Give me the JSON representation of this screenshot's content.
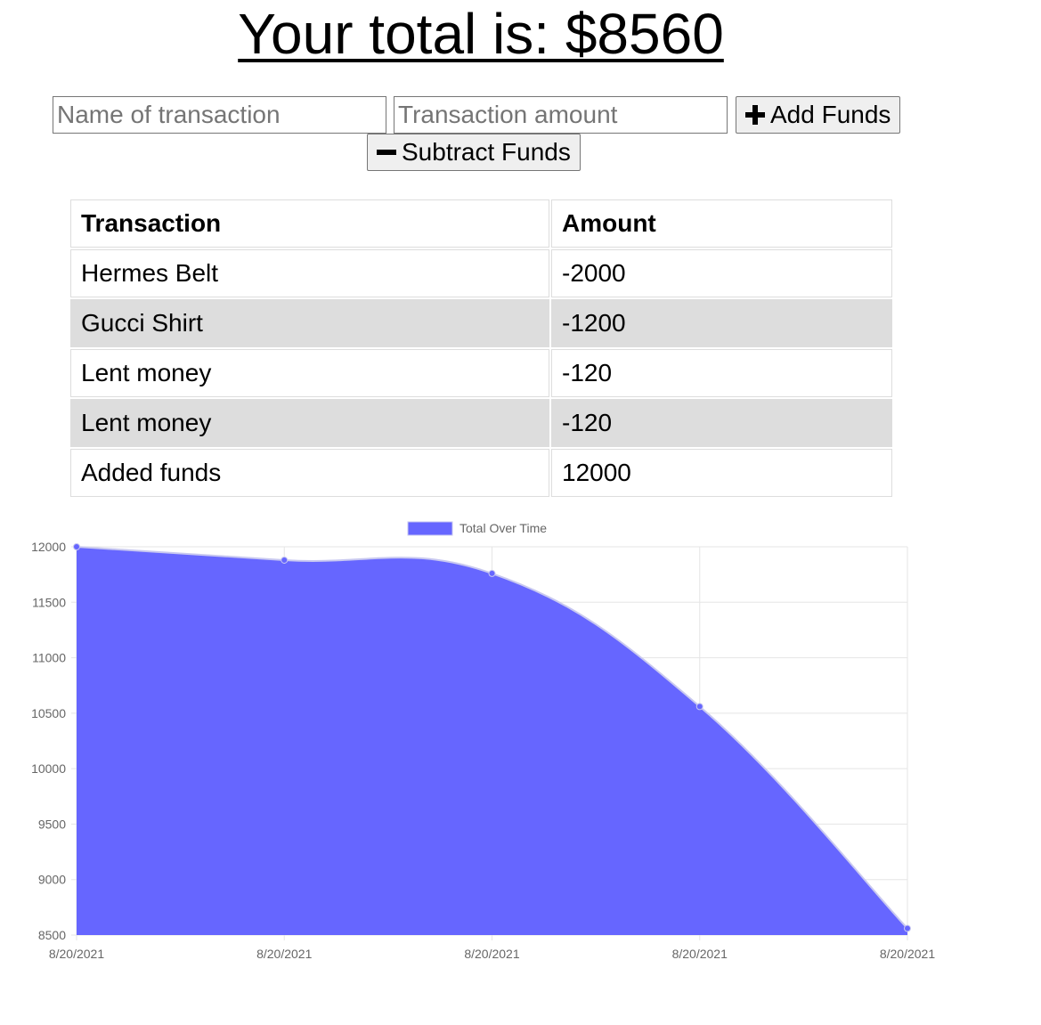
{
  "header": {
    "total_text": "Your total is: $8560"
  },
  "form": {
    "name_placeholder": "Name of transaction",
    "amount_placeholder": "Transaction amount",
    "add_label": "Add Funds",
    "subtract_label": "Subtract Funds",
    "add_icon": "plus-icon",
    "subtract_icon": "minus-icon"
  },
  "table": {
    "headers": [
      "Transaction",
      "Amount"
    ],
    "rows": [
      {
        "name": "Hermes Belt",
        "amount": "-2000"
      },
      {
        "name": "Gucci Shirt",
        "amount": "-1200"
      },
      {
        "name": "Lent money",
        "amount": "-120"
      },
      {
        "name": "Lent money",
        "amount": "-120"
      },
      {
        "name": "Added funds",
        "amount": "12000"
      }
    ],
    "alt_row_color": "#dddddd"
  },
  "chart_data": {
    "type": "area",
    "x": [
      "8/20/2021",
      "8/20/2021",
      "8/20/2021",
      "8/20/2021",
      "8/20/2021"
    ],
    "series": [
      {
        "name": "Total Over Time",
        "values": [
          12000,
          11880,
          11760,
          10560,
          8560
        ],
        "color": "#6666ff"
      }
    ],
    "ylim": [
      8500,
      12000
    ],
    "yticks": [
      8500,
      9000,
      9500,
      10000,
      10500,
      11000,
      11500,
      12000
    ],
    "grid": true,
    "legend": "top"
  }
}
